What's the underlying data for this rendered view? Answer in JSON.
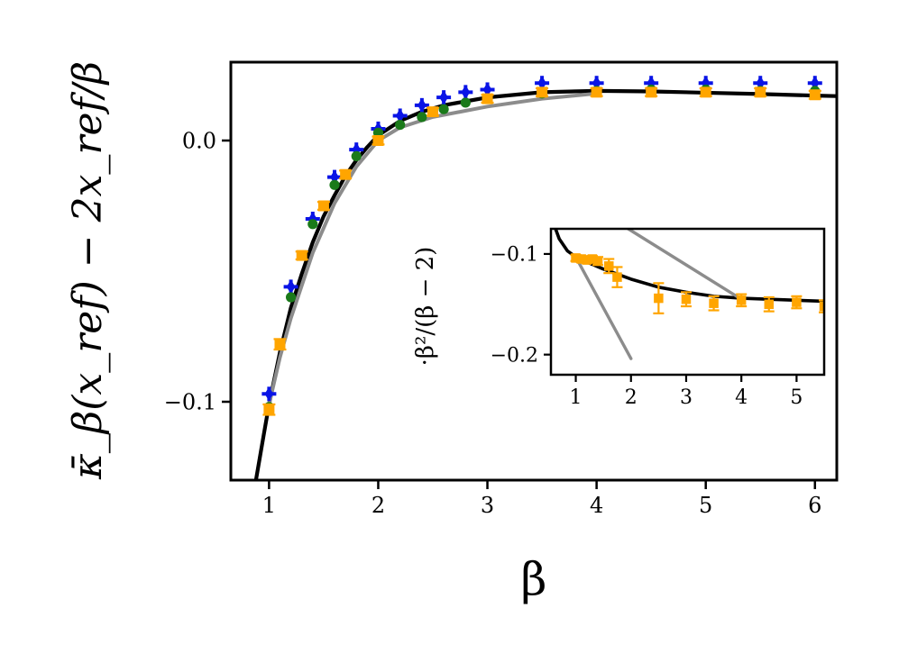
{
  "chart_data": [
    {
      "type": "scatter",
      "title": "",
      "xlabel": "β",
      "ylabel": "κ̄_β(x_ref) − 2x_ref/β",
      "xlim": [
        0.65,
        6.2
      ],
      "ylim": [
        -0.13,
        0.03
      ],
      "x_ticks": [
        1,
        2,
        3,
        4,
        5,
        6
      ],
      "x_tick_labels": [
        "1",
        "2",
        "3",
        "4",
        "5",
        "6"
      ],
      "y_ticks": [
        0.0,
        -0.1
      ],
      "y_tick_labels": [
        "0.0",
        "−0.1"
      ],
      "grid": false,
      "legend": "none",
      "series": [
        {
          "kind": "line",
          "color": "#000000",
          "x": [
            0.88,
            0.95,
            1.0,
            1.1,
            1.2,
            1.3,
            1.4,
            1.5,
            1.6,
            1.7,
            1.8,
            1.9,
            2.0,
            2.2,
            2.4,
            2.6,
            2.8,
            3.0,
            3.5,
            4.0,
            4.5,
            5.0,
            5.5,
            6.0,
            6.2
          ],
          "y": [
            -0.13,
            -0.113,
            -0.101,
            -0.081,
            -0.064,
            -0.051,
            -0.039,
            -0.029,
            -0.021,
            -0.0135,
            -0.0075,
            -0.0025,
            0.002,
            0.0075,
            0.011,
            0.0135,
            0.015,
            0.0165,
            0.0185,
            0.019,
            0.0188,
            0.0183,
            0.0178,
            0.0172,
            0.017
          ]
        },
        {
          "kind": "line",
          "color": "#8c8c8c",
          "x": [
            1.0,
            1.1,
            1.2,
            1.4,
            1.6,
            1.8,
            2.0,
            2.2,
            2.5,
            3.0,
            3.5,
            4.0
          ],
          "y": [
            -0.101,
            -0.083,
            -0.068,
            -0.043,
            -0.024,
            -0.01,
            0.0,
            0.005,
            0.009,
            0.013,
            0.016,
            0.018
          ]
        },
        {
          "kind": "markers",
          "marker": "plus",
          "color": "#0a14e6",
          "x": [
            1.0,
            1.2,
            1.4,
            1.6,
            1.8,
            2.0,
            2.2,
            2.4,
            2.6,
            2.8,
            3.0,
            3.5,
            4.0,
            4.5,
            5.0,
            5.5,
            6.0
          ],
          "y": [
            -0.097,
            -0.056,
            -0.03,
            -0.014,
            -0.0035,
            0.0045,
            0.0095,
            0.0135,
            0.0165,
            0.0185,
            0.0195,
            0.022,
            0.022,
            0.022,
            0.022,
            0.022,
            0.022
          ]
        },
        {
          "kind": "markers",
          "marker": "circle",
          "color": "#1a7a1a",
          "x": [
            1.0,
            1.2,
            1.4,
            1.6,
            1.8,
            2.0,
            2.2,
            2.4,
            2.6,
            2.8,
            3.0,
            3.5,
            4.0,
            4.5,
            5.0,
            5.5,
            6.0
          ],
          "y": [
            -0.102,
            -0.06,
            -0.032,
            -0.017,
            -0.006,
            0.003,
            0.006,
            0.009,
            0.012,
            0.0145,
            0.016,
            0.018,
            0.019,
            0.0195,
            0.0195,
            0.019,
            0.019
          ]
        },
        {
          "kind": "errorbar",
          "marker": "square",
          "color": "#ffa500",
          "x": [
            1.0,
            1.1,
            1.3,
            1.5,
            1.7,
            2.0,
            2.5,
            3.0,
            3.5,
            4.0,
            4.5,
            5.0,
            5.5,
            6.0
          ],
          "y": [
            -0.103,
            -0.078,
            -0.044,
            -0.025,
            -0.013,
            0.0,
            0.011,
            0.016,
            0.0185,
            0.0185,
            0.0185,
            0.0185,
            0.0185,
            0.0175
          ],
          "yerr": [
            0.002,
            0.002,
            0.0015,
            0.0015,
            0.0015,
            0.0015,
            0.0015,
            0.0015,
            0.0015,
            0.0015,
            0.0015,
            0.0015,
            0.0015,
            0.0015
          ]
        }
      ]
    },
    {
      "type": "scatter",
      "title": "",
      "xlabel": "",
      "ylabel": "·β²/(β − 2)",
      "xlim": [
        0.55,
        5.5
      ],
      "ylim": [
        -0.22,
        -0.075
      ],
      "x_ticks": [
        1,
        2,
        3,
        4,
        5
      ],
      "x_tick_labels": [
        "1",
        "2",
        "3",
        "4",
        "5"
      ],
      "y_ticks": [
        -0.1,
        -0.2
      ],
      "y_tick_labels": [
        "−0.1",
        "−0.2"
      ],
      "grid": false,
      "legend": "none",
      "series": [
        {
          "kind": "line",
          "color": "#000000",
          "x": [
            0.6,
            0.7,
            0.85,
            1.0,
            1.2,
            1.5,
            2.0,
            2.5,
            3.0,
            3.5,
            4.0,
            4.5,
            5.0,
            5.5
          ],
          "y": [
            -0.07,
            -0.085,
            -0.097,
            -0.103,
            -0.108,
            -0.115,
            -0.125,
            -0.133,
            -0.138,
            -0.142,
            -0.144,
            -0.145,
            -0.146,
            -0.147
          ]
        },
        {
          "kind": "line",
          "color": "#8c8c8c",
          "x": [
            1.0,
            2.0
          ],
          "y": [
            -0.103,
            -0.204
          ]
        },
        {
          "kind": "line",
          "color": "#8c8c8c",
          "x": [
            1.95,
            4.0
          ],
          "y": [
            -0.075,
            -0.145
          ]
        },
        {
          "kind": "errorbar",
          "marker": "square",
          "color": "#ffa500",
          "x": [
            1.0,
            1.1,
            1.2,
            1.3,
            1.4,
            1.6,
            1.75,
            2.5,
            3.0,
            3.5,
            4.0,
            4.5,
            5.0,
            5.5
          ],
          "y": [
            -0.104,
            -0.105,
            -0.106,
            -0.105,
            -0.107,
            -0.112,
            -0.123,
            -0.144,
            -0.145,
            -0.149,
            -0.146,
            -0.15,
            -0.148,
            -0.152
          ],
          "yerr": [
            0.003,
            0.003,
            0.003,
            0.003,
            0.004,
            0.007,
            0.01,
            0.015,
            0.007,
            0.007,
            0.006,
            0.007,
            0.006,
            0.006
          ]
        }
      ]
    }
  ]
}
